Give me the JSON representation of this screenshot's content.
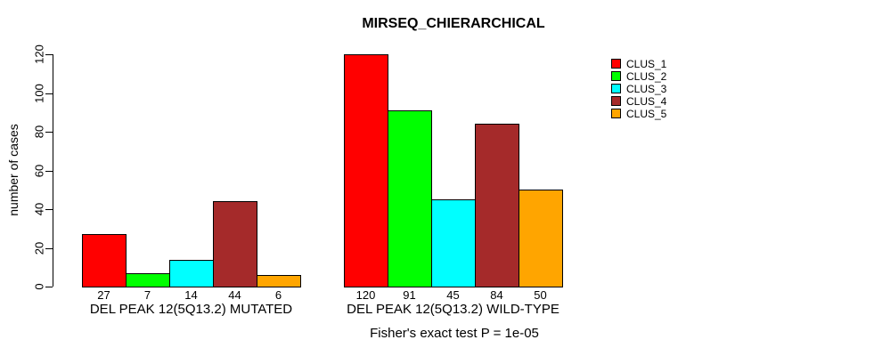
{
  "figure": {
    "background": "#FFFFFF"
  },
  "chart_data": {
    "type": "bar",
    "title": "MIRSEQ_CHIERARCHICAL",
    "ylabel": "number of cases",
    "xlabel": "",
    "ylim": [
      0,
      120
    ],
    "yticks": [
      0,
      20,
      40,
      60,
      80,
      100,
      120
    ],
    "grid": false,
    "bar_value_labels_shown": true,
    "legend": {
      "position": "right",
      "entries": [
        {
          "label": "CLUS_1",
          "color": "#FF0000"
        },
        {
          "label": "CLUS_2",
          "color": "#00FF00"
        },
        {
          "label": "CLUS_3",
          "color": "#00FFFF"
        },
        {
          "label": "CLUS_4",
          "color": "#A52A2A"
        },
        {
          "label": "CLUS_5",
          "color": "#FFA500"
        }
      ]
    },
    "groups": [
      {
        "label": "DEL PEAK 12(5Q13.2) MUTATED",
        "values": [
          27,
          7,
          14,
          44,
          6
        ]
      },
      {
        "label": "DEL PEAK 12(5Q13.2) WILD-TYPE",
        "values": [
          120,
          91,
          45,
          84,
          50
        ]
      }
    ],
    "series": [
      {
        "name": "CLUS_1",
        "color": "#FF0000",
        "values": [
          27,
          120
        ]
      },
      {
        "name": "CLUS_2",
        "color": "#00FF00",
        "values": [
          7,
          91
        ]
      },
      {
        "name": "CLUS_3",
        "color": "#00FFFF",
        "values": [
          14,
          45
        ]
      },
      {
        "name": "CLUS_4",
        "color": "#A52A2A",
        "values": [
          44,
          84
        ]
      },
      {
        "name": "CLUS_5",
        "color": "#FFA500",
        "values": [
          6,
          50
        ]
      }
    ],
    "annotation": "Fisher's exact test P = 1e-05"
  }
}
